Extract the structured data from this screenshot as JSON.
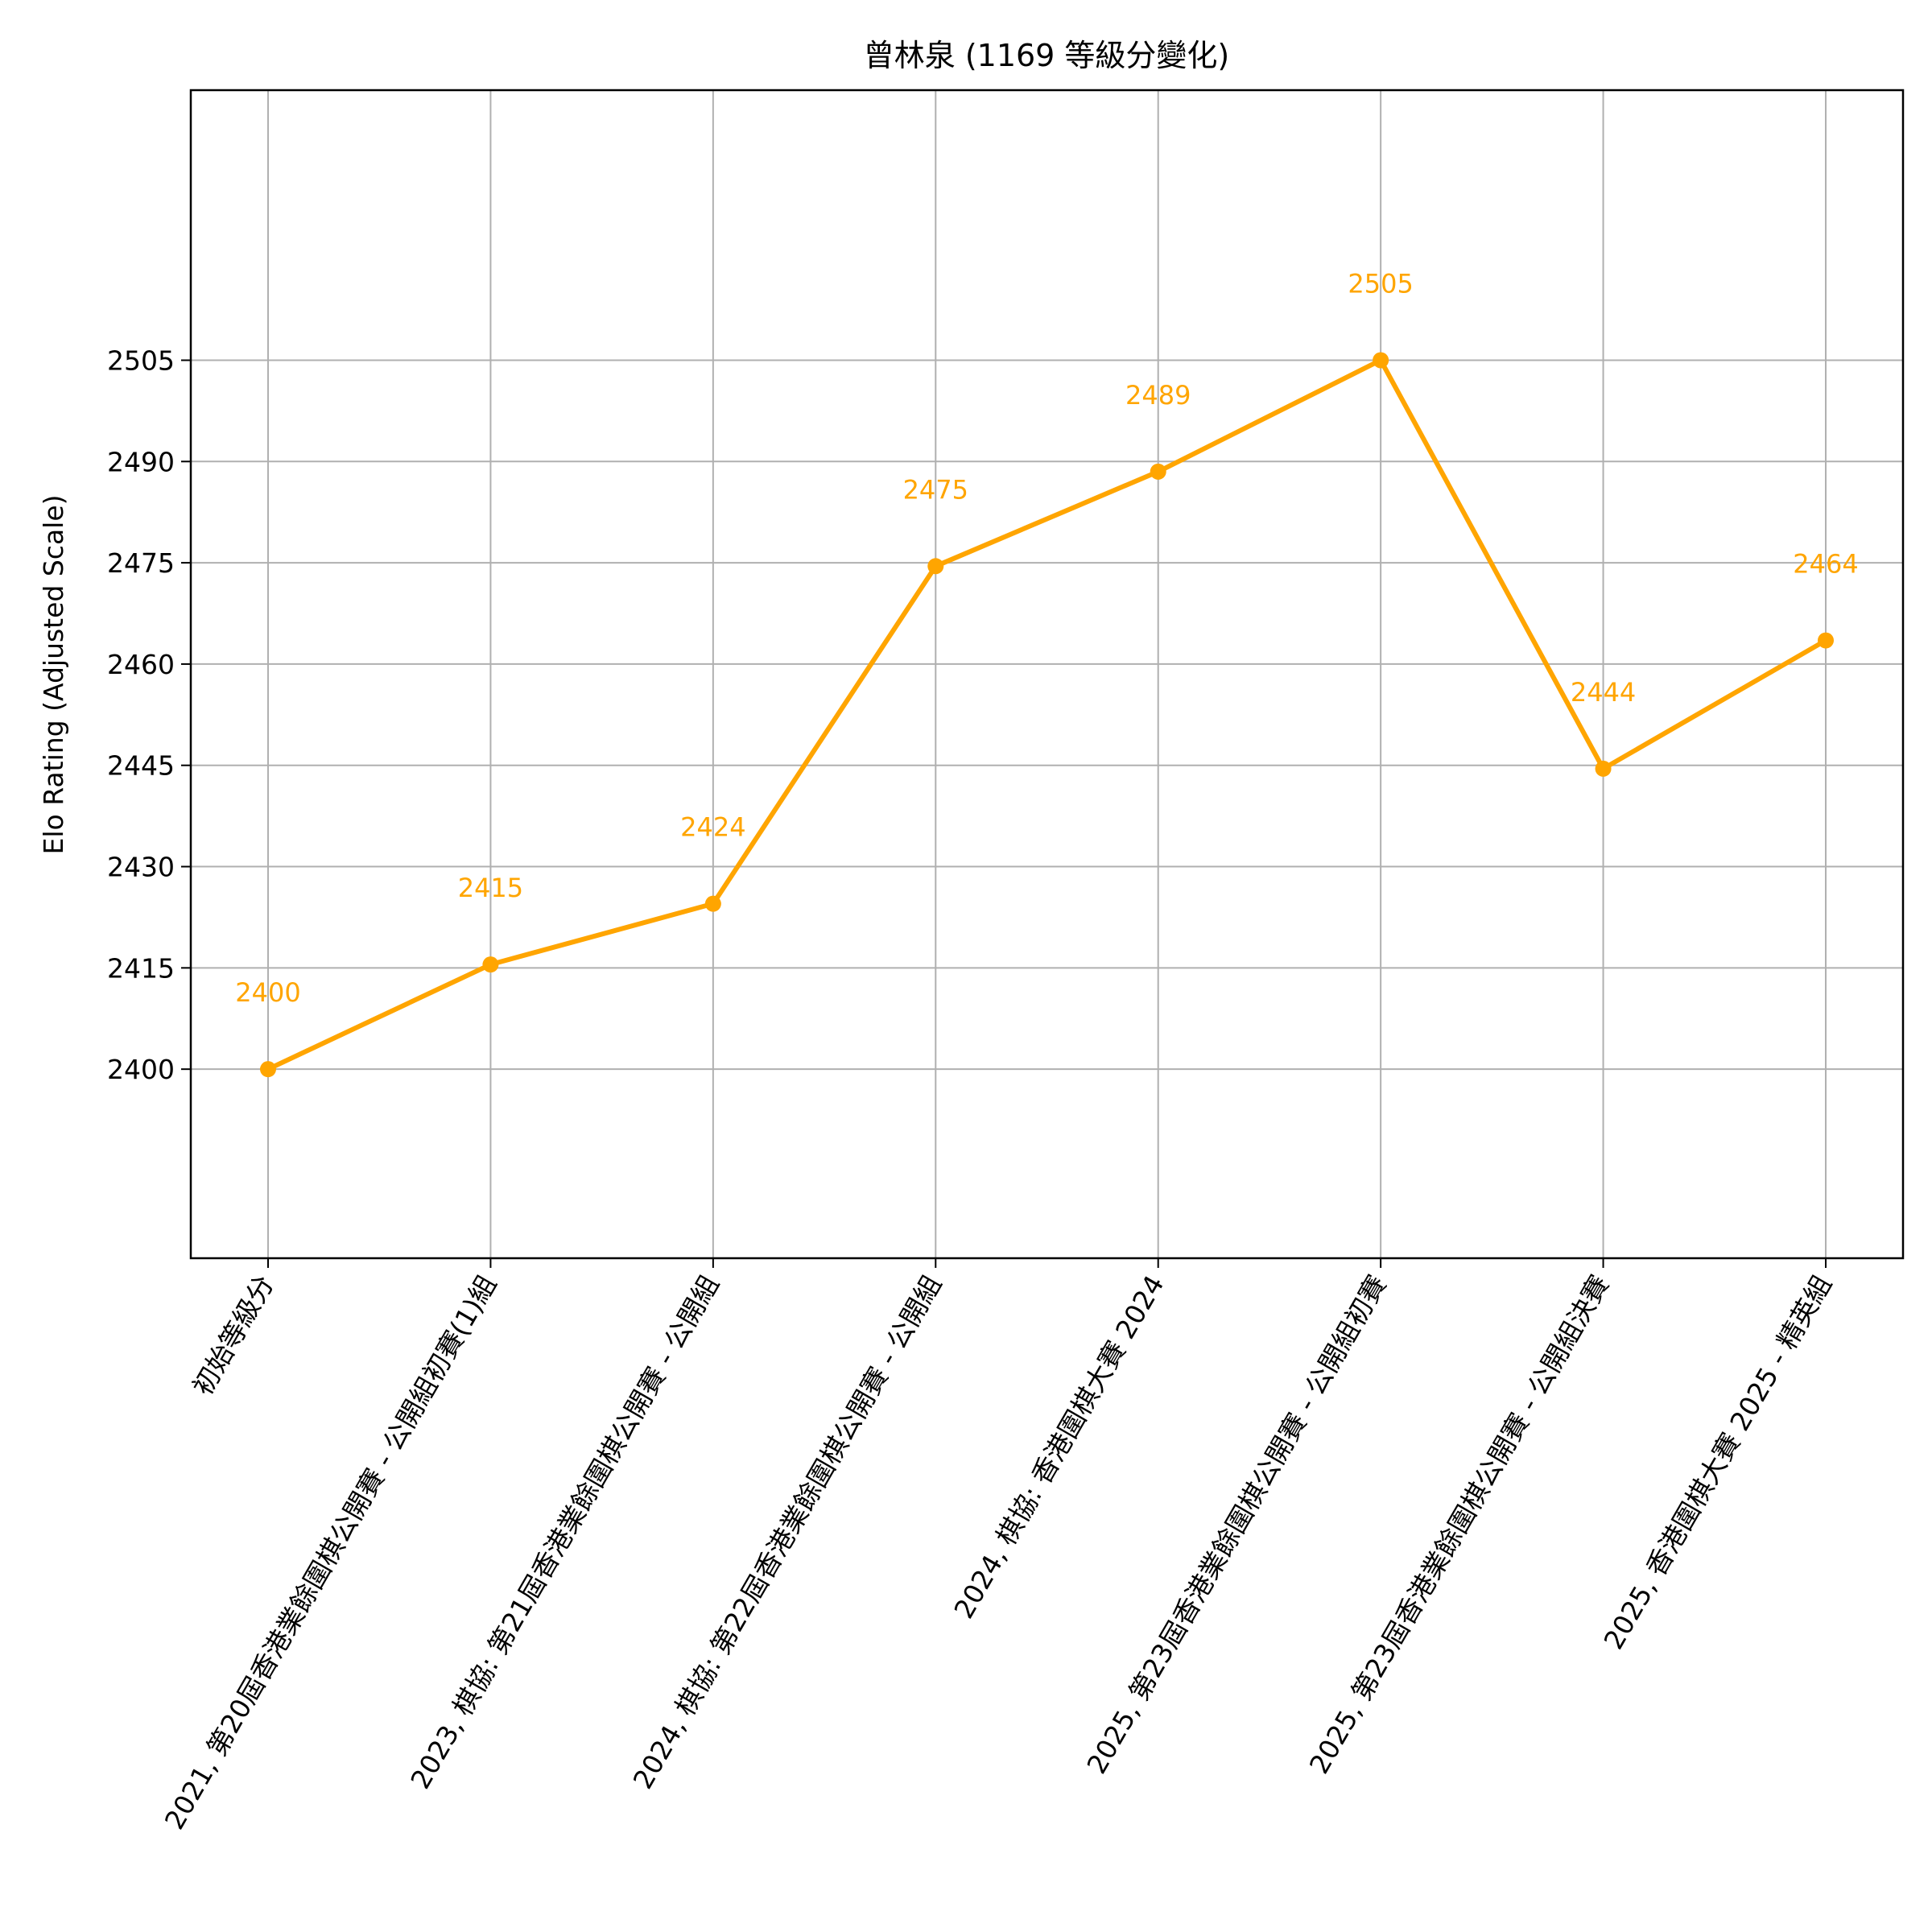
{
  "chart_data": {
    "type": "line",
    "title": "曾林泉 (1169 等級分變化)",
    "xlabel": "",
    "ylabel": "Elo Rating (Adjusted Scale)",
    "categories": [
      "初始等級分",
      "2021, 第20屆香港業餘圍棋公開賽 - 公開組初賽(1)組",
      "2023, 棋協: 第21屆香港業餘圍棋公開賽 - 公開組",
      "2024, 棋協: 第22屆香港業餘圍棋公開賽 - 公開組",
      "2024, 棋協: 香港圍棋大賽 2024",
      "2025, 第23屆香港業餘圍棋公開賽 - 公開組初賽",
      "2025, 第23屆香港業餘圍棋公開賽 - 公開組決賽",
      "2025, 香港圍棋大賽 2025 - 精英組"
    ],
    "series": [
      {
        "name": "",
        "values": [
          2400,
          2415.5,
          2424.5,
          2474.5,
          2488.5,
          2505,
          2444.5,
          2463.5
        ],
        "data_labels": [
          "2400",
          "2415",
          "2424",
          "2475",
          "2489",
          "2505",
          "2444",
          "2464"
        ]
      }
    ],
    "yticks": [
      2400,
      2415,
      2430,
      2445,
      2460,
      2475,
      2490,
      2505
    ],
    "ylim": [
      2372,
      2545
    ],
    "grid": true,
    "legend": "none",
    "colors": {
      "line": "#ffa500",
      "label": "#ffa500",
      "grid": "#b0b0b0"
    }
  }
}
